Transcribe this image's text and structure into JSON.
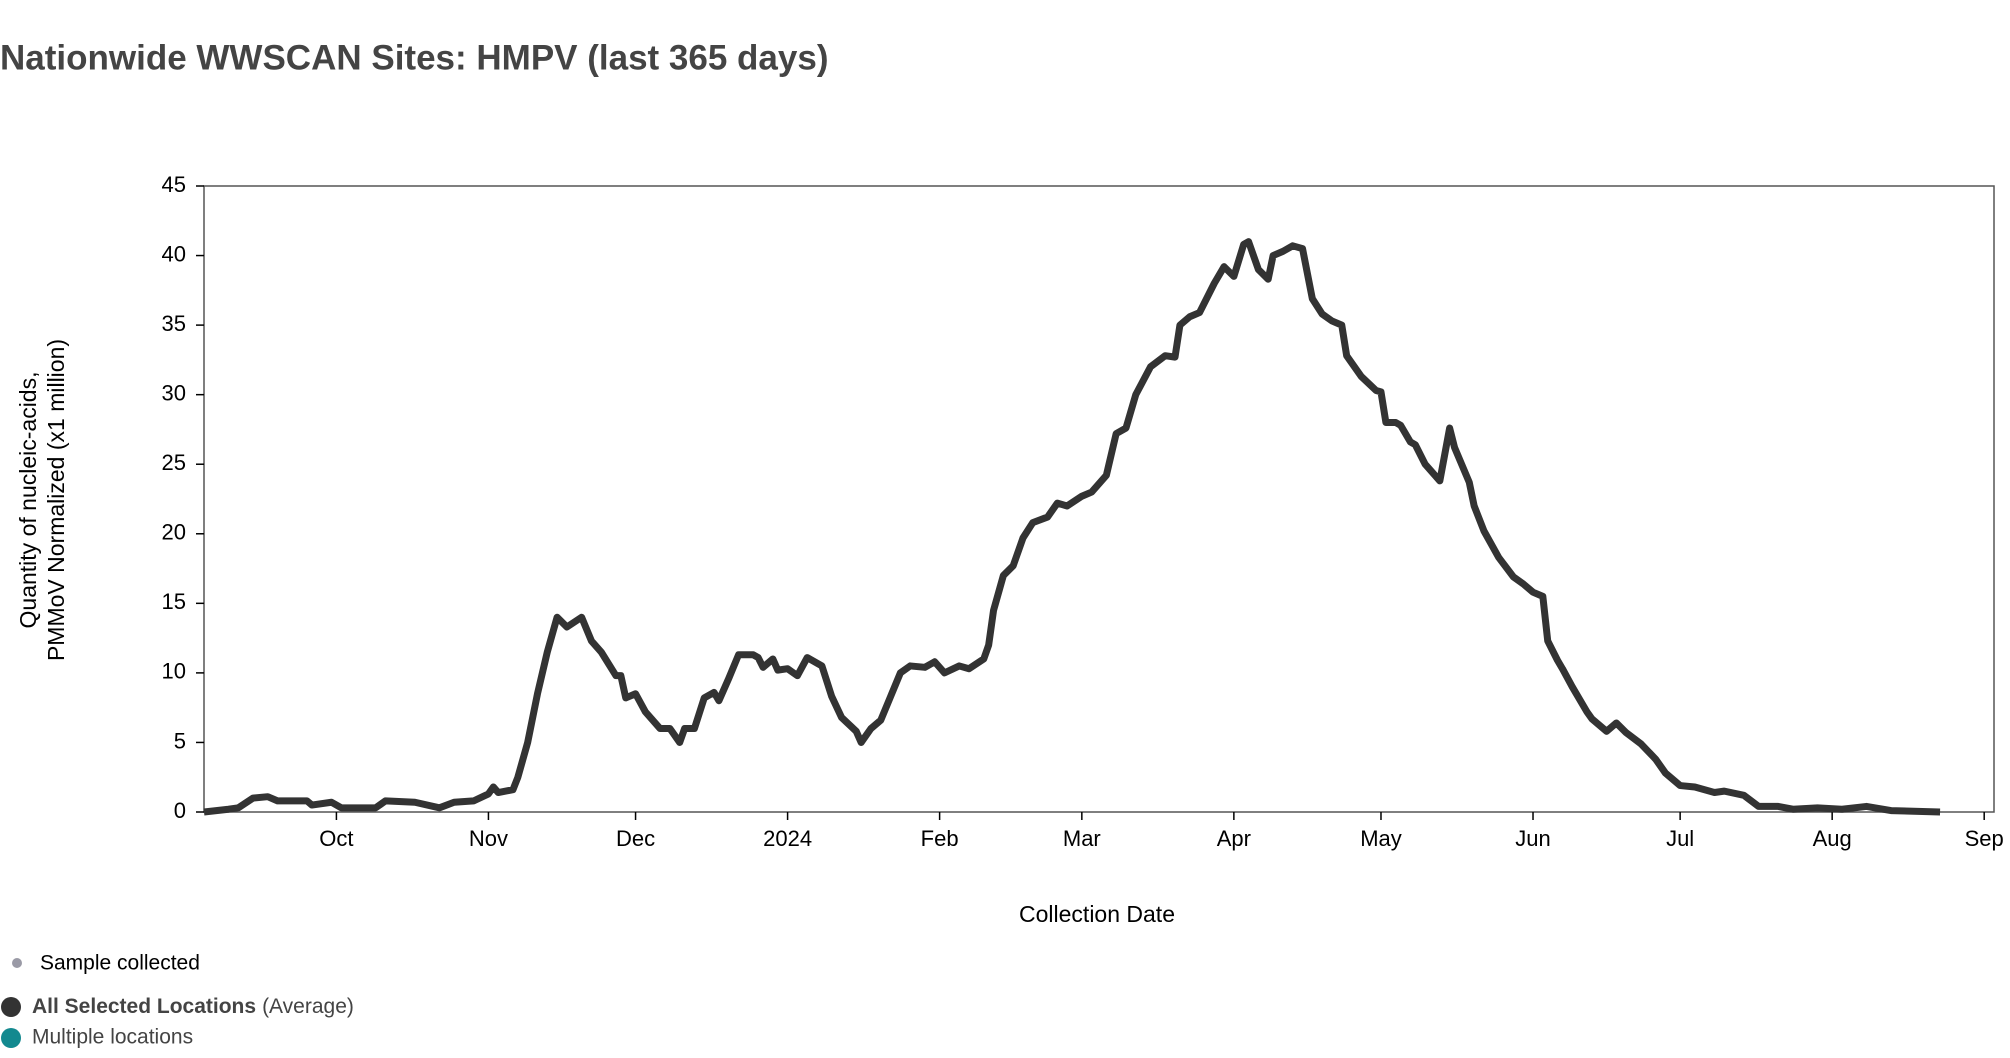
{
  "chart_data": {
    "type": "line",
    "title": "Nationwide WWSCAN Sites: HMPV (last 365 days)",
    "xlabel": "Collection Date",
    "ylabel": [
      "Quantity of nucleic-acids,",
      "PMMoV Normalized (x1 million)"
    ],
    "xlim": [
      0,
      365
    ],
    "xticks": [
      {
        "value": 27,
        "label": "Oct"
      },
      {
        "value": 58,
        "label": "Nov"
      },
      {
        "value": 88,
        "label": "Dec"
      },
      {
        "value": 119,
        "label": "2024"
      },
      {
        "value": 150,
        "label": "Feb"
      },
      {
        "value": 179,
        "label": "Mar"
      },
      {
        "value": 210,
        "label": "Apr"
      },
      {
        "value": 240,
        "label": "May"
      },
      {
        "value": 271,
        "label": "Jun"
      },
      {
        "value": 301,
        "label": "Jul"
      },
      {
        "value": 332,
        "label": "Aug"
      },
      {
        "value": 363,
        "label": "Sep"
      }
    ],
    "ylim": [
      0,
      45
    ],
    "yticks": [
      0,
      5,
      10,
      15,
      20,
      25,
      30,
      35,
      40,
      45
    ],
    "x": [
      0,
      5,
      7,
      10,
      13,
      15,
      21,
      22,
      26,
      28,
      35,
      37,
      43,
      48,
      51,
      55,
      58,
      59,
      60,
      63,
      64,
      66,
      68,
      70,
      72,
      74,
      77,
      79,
      81,
      84,
      85,
      86,
      88,
      90,
      93,
      95,
      97,
      98,
      100,
      102,
      104,
      105,
      107,
      109,
      112,
      113,
      114,
      116,
      117,
      119,
      121,
      123,
      126,
      128,
      130,
      133,
      134,
      136,
      138,
      140,
      142,
      144,
      147,
      149,
      151,
      154,
      156,
      159,
      160,
      161,
      163,
      165,
      167,
      169,
      172,
      174,
      176,
      179,
      181,
      184,
      186,
      188,
      190,
      193,
      196,
      198,
      199,
      201,
      203,
      206,
      208,
      210,
      212,
      213,
      215,
      217,
      218,
      220,
      222,
      224,
      226,
      228,
      230,
      232,
      233,
      236,
      239,
      240,
      241,
      243,
      244,
      246,
      247,
      249,
      251,
      252,
      254,
      255,
      258,
      259,
      261,
      264,
      267,
      269,
      271,
      273,
      274,
      276,
      277,
      279,
      282,
      283,
      286,
      288,
      290,
      293,
      296,
      298,
      301,
      304,
      308,
      310,
      314,
      317,
      321,
      324,
      329,
      334,
      339,
      344,
      354
    ],
    "series": [
      {
        "name": "All Selected Locations",
        "name_note": "(Average)",
        "color": "#333333",
        "values": [
          0,
          0.2,
          0.3,
          1.0,
          1.1,
          0.8,
          0.8,
          0.5,
          0.7,
          0.3,
          0.3,
          0.8,
          0.7,
          0.3,
          0.7,
          0.8,
          1.3,
          1.8,
          1.4,
          1.6,
          2.5,
          5,
          8.5,
          11.5,
          14,
          13.3,
          14,
          12.3,
          11.5,
          9.8,
          9.8,
          8.2,
          8.5,
          7.2,
          6,
          6,
          5,
          6,
          6,
          8.2,
          8.6,
          8,
          9.6,
          11.3,
          11.3,
          11.1,
          10.4,
          11,
          10.2,
          10.3,
          9.8,
          11.1,
          10.5,
          8.3,
          6.8,
          5.8,
          5,
          6,
          6.6,
          8.3,
          10,
          10.5,
          10.4,
          10.8,
          10,
          10.5,
          10.3,
          11,
          12,
          14.5,
          17,
          17.7,
          19.7,
          20.8,
          21.2,
          22.2,
          22,
          22.7,
          23,
          24.2,
          27.2,
          27.6,
          30,
          32,
          32.8,
          32.7,
          35,
          35.6,
          35.9,
          38,
          39.2,
          38.5,
          40.8,
          41,
          39,
          38.3,
          40,
          40.3,
          40.7,
          40.5,
          36.9,
          35.8,
          35.3,
          35,
          32.8,
          31.3,
          30.3,
          30.2,
          28,
          28,
          27.8,
          26.6,
          26.4,
          25,
          24.2,
          23.8,
          27.6,
          26.2,
          23.7,
          22,
          20.2,
          18.3,
          16.9,
          16.4,
          15.8,
          15.5,
          12.3,
          10.9,
          10.3,
          9,
          7.2,
          6.7,
          5.8,
          6.4,
          5.7,
          4.9,
          3.8,
          2.8,
          1.9,
          1.8,
          1.4,
          1.5,
          1.2,
          0.4,
          0.4,
          0.2,
          0.3,
          0.2,
          0.4,
          0.1,
          0.0
        ]
      }
    ],
    "legend_items": [
      {
        "label": "Sample collected",
        "color": "#9a9aa6"
      },
      {
        "label": "Multiple locations",
        "color": "#13898f"
      }
    ]
  }
}
